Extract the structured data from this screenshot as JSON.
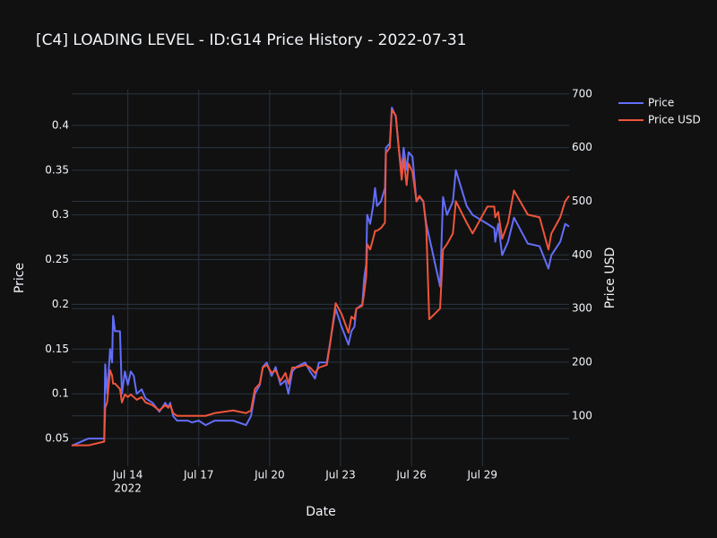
{
  "chart_data": {
    "type": "line",
    "title": "[C4] LOADING LEVEL - ID:G14 Price History - 2022-07-31",
    "x_label": "Date",
    "y_label": "Price",
    "y2_label": "Price USD",
    "x": [
      "2022-07-11T15:00",
      "2022-07-12T08:00",
      "2022-07-13T00:00",
      "2022-07-13T01:00",
      "2022-07-13T03:00",
      "2022-07-13T06:00",
      "2022-07-13T08:00",
      "2022-07-13T09:00",
      "2022-07-13T11:00",
      "2022-07-13T16:00",
      "2022-07-13T18:00",
      "2022-07-13T21:00",
      "2022-07-14T00:00",
      "2022-07-14T03:00",
      "2022-07-14T06:00",
      "2022-07-14T09:00",
      "2022-07-14T14:00",
      "2022-07-14T18:00",
      "2022-07-15T01:00",
      "2022-07-15T08:00",
      "2022-07-15T14:00",
      "2022-07-15T17:00",
      "2022-07-15T19:00",
      "2022-07-15T22:00",
      "2022-07-16T02:00",
      "2022-07-16T13:00",
      "2022-07-16T17:00",
      "2022-07-17T00:00",
      "2022-07-17T07:00",
      "2022-07-17T16:00",
      "2022-07-18T11:00",
      "2022-07-19T00:00",
      "2022-07-19T05:00",
      "2022-07-19T09:00",
      "2022-07-19T14:00",
      "2022-07-19T17:00",
      "2022-07-19T21:00",
      "2022-07-20T02:00",
      "2022-07-20T06:00",
      "2022-07-20T11:00",
      "2022-07-20T16:00",
      "2022-07-20T19:00",
      "2022-07-20T23:00",
      "2022-07-21T03:00",
      "2022-07-21T12:00",
      "2022-07-21T17:00",
      "2022-07-21T22:00",
      "2022-07-22T02:00",
      "2022-07-22T10:00",
      "2022-07-22T13:00",
      "2022-07-22T19:00",
      "2022-07-23T01:00",
      "2022-07-23T08:00",
      "2022-07-23T11:00",
      "2022-07-23T14:00",
      "2022-07-23T16:00",
      "2022-07-23T22:00",
      "2022-07-24T00:00",
      "2022-07-24T02:00",
      "2022-07-24T03:00",
      "2022-07-24T06:00",
      "2022-07-24T09:00",
      "2022-07-24T11:00",
      "2022-07-24T13:00",
      "2022-07-24T17:00",
      "2022-07-24T21:00",
      "2022-07-24T22:00",
      "2022-07-25T02:00",
      "2022-07-25T04:00",
      "2022-07-25T08:00",
      "2022-07-25T11:00",
      "2022-07-25T14:00",
      "2022-07-25T16:00",
      "2022-07-25T19:00",
      "2022-07-25T21:00",
      "2022-07-26T01:00",
      "2022-07-26T05:00",
      "2022-07-26T08:00",
      "2022-07-26T12:00",
      "2022-07-26T15:00",
      "2022-07-26T18:00",
      "2022-07-27T05:00",
      "2022-07-27T08:00",
      "2022-07-27T12:00",
      "2022-07-27T18:00",
      "2022-07-27T21:00",
      "2022-07-28T08:00",
      "2022-07-28T14:00",
      "2022-07-29T05:00",
      "2022-07-29T12:00",
      "2022-07-29T13:00",
      "2022-07-29T16:00",
      "2022-07-29T20:00",
      "2022-07-30T02:00",
      "2022-07-30T08:00",
      "2022-07-30T22:00",
      "2022-07-31T10:00",
      "2022-07-31T19:00",
      "2022-07-31T22:00",
      "2022-08-01T07:00",
      "2022-08-01T12:00",
      "2022-08-01T16:00"
    ],
    "series": [
      {
        "name": "Price",
        "color": "#636efa",
        "axis": "y",
        "values": [
          0.042,
          0.05,
          0.05,
          0.133,
          0.1,
          0.15,
          0.135,
          0.187,
          0.17,
          0.17,
          0.1,
          0.125,
          0.11,
          0.125,
          0.12,
          0.1,
          0.105,
          0.095,
          0.09,
          0.08,
          0.09,
          0.085,
          0.09,
          0.075,
          0.07,
          0.07,
          0.068,
          0.07,
          0.065,
          0.07,
          0.07,
          0.065,
          0.075,
          0.1,
          0.11,
          0.13,
          0.135,
          0.12,
          0.13,
          0.11,
          0.115,
          0.1,
          0.125,
          0.13,
          0.135,
          0.125,
          0.117,
          0.135,
          0.135,
          0.155,
          0.195,
          0.175,
          0.155,
          0.17,
          0.175,
          0.195,
          0.2,
          0.23,
          0.245,
          0.3,
          0.29,
          0.31,
          0.33,
          0.31,
          0.315,
          0.33,
          0.375,
          0.38,
          0.42,
          0.41,
          0.375,
          0.35,
          0.375,
          0.35,
          0.37,
          0.365,
          0.315,
          0.32,
          0.315,
          0.29,
          0.275,
          0.22,
          0.32,
          0.3,
          0.315,
          0.35,
          0.31,
          0.3,
          0.29,
          0.285,
          0.27,
          0.29,
          0.255,
          0.27,
          0.297,
          0.268,
          0.265,
          0.24,
          0.255,
          0.27,
          0.29,
          0.287
        ]
      },
      {
        "name": "Price USD",
        "color": "#ef553b",
        "axis": "y2",
        "values": [
          45,
          45,
          52,
          115,
          125,
          185,
          175,
          160,
          160,
          150,
          125,
          140,
          135,
          140,
          135,
          130,
          135,
          125,
          120,
          110,
          120,
          115,
          120,
          105,
          100,
          100,
          100,
          100,
          100,
          105,
          110,
          105,
          110,
          150,
          160,
          190,
          195,
          180,
          185,
          165,
          180,
          160,
          190,
          190,
          195,
          190,
          180,
          190,
          195,
          230,
          310,
          290,
          255,
          285,
          280,
          300,
          305,
          330,
          360,
          420,
          410,
          430,
          445,
          445,
          450,
          460,
          590,
          600,
          670,
          660,
          600,
          540,
          580,
          530,
          570,
          555,
          500,
          510,
          500,
          450,
          280,
          300,
          410,
          420,
          440,
          500,
          460,
          440,
          490,
          490,
          470,
          480,
          430,
          460,
          520,
          475,
          470,
          410,
          440,
          470,
          500,
          510
        ]
      }
    ],
    "xlim": [
      "2022-07-11T15:00",
      "2022-08-01T16:00"
    ],
    "xticks": [
      {
        "value": "2022-07-14T00:00",
        "label": "Jul 14",
        "sublabel": "2022"
      },
      {
        "value": "2022-07-17T00:00",
        "label": "Jul 17"
      },
      {
        "value": "2022-07-20T00:00",
        "label": "Jul 20"
      },
      {
        "value": "2022-07-23T00:00",
        "label": "Jul 23"
      },
      {
        "value": "2022-07-26T00:00",
        "label": "Jul 26"
      },
      {
        "value": "2022-07-29T00:00",
        "label": "Jul 29"
      }
    ],
    "ylim": [
      0.019,
      0.44
    ],
    "yticks": [
      0.05,
      0.1,
      0.15,
      0.2,
      0.25,
      0.3,
      0.35,
      0.4
    ],
    "y2lim": [
      6,
      708
    ],
    "y2ticks": [
      100,
      200,
      300,
      400,
      500,
      600,
      700
    ],
    "grid": true
  }
}
